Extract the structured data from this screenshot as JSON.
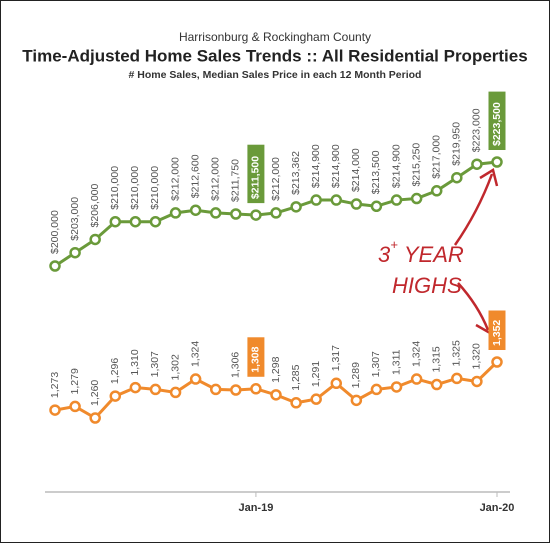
{
  "chart_data": {
    "type": "line",
    "supertitle": "Harrisonburg & Rockingham County",
    "title": "Time-Adjusted Home Sales Trends  ::  All Residential Properties",
    "subtitle": "# Home Sales, Median Sales Price in each 12 Month Period",
    "categories": [
      null,
      null,
      null,
      null,
      null,
      null,
      null,
      null,
      null,
      null,
      "Jan-19",
      null,
      null,
      null,
      null,
      null,
      null,
      null,
      null,
      null,
      null,
      null,
      "Jan-20"
    ],
    "highlight_indices": [
      10,
      22
    ],
    "series": [
      {
        "name": "Median Sales Price",
        "color": "#6a9a3a",
        "values": [
          200000,
          203000,
          206000,
          210000,
          210000,
          210000,
          212000,
          212600,
          212000,
          211750,
          211500,
          212000,
          213362,
          214900,
          214900,
          214000,
          213500,
          214900,
          215250,
          217000,
          219950,
          223000,
          223500
        ],
        "value_labels": [
          "$200,000",
          "$203,000",
          "$206,000",
          "$210,000",
          "$210,000",
          "$210,000",
          "$212,000",
          "$212,600",
          "$212,000",
          "$211,750",
          "$211,500",
          "$212,000",
          "$213,362",
          "$214,900",
          "$214,900",
          "$214,000",
          "$213,500",
          "$214,900",
          "$215,250",
          "$217,000",
          "$219,950",
          "$223,000",
          "$223,500"
        ]
      },
      {
        "name": "# Home Sales",
        "color": "#f08a2c",
        "values": [
          1273,
          1279,
          1260,
          1296,
          1310,
          1307,
          1302,
          1324,
          1307,
          1306,
          1308,
          1298,
          1285,
          1291,
          1317,
          1289,
          1307,
          1311,
          1324,
          1315,
          1325,
          1320,
          1352
        ],
        "value_labels": [
          "1,273",
          "1,279",
          "1,260",
          "1,296",
          "1,310",
          "1,307",
          "1,302",
          "1,324",
          null,
          "1,306",
          "1,308",
          "1,298",
          "1,285",
          "1,291",
          "1,317",
          "1,289",
          "1,307",
          "1,311",
          "1,324",
          "1,315",
          "1,325",
          "1,320",
          "1,352"
        ]
      }
    ],
    "annotation": {
      "number": "3",
      "superscript": "+",
      "line1": "YEAR",
      "line2": "HIGHS",
      "color": "#c0282d"
    }
  }
}
